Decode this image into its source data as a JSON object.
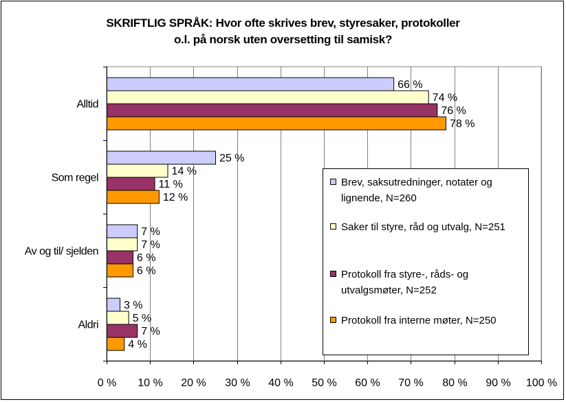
{
  "chart_data": {
    "type": "bar",
    "orientation": "horizontal",
    "title_lines": [
      "SKRIFTLIG SPRÅK: Hvor ofte skrives brev, styresaker, protokoller",
      "o.l. på norsk uten oversetting til samisk?"
    ],
    "categories": [
      "Alltid",
      "Som regel",
      "Av og til/ sjelden",
      "Aldri"
    ],
    "x_ticks": [
      "0 %",
      "10 %",
      "20 %",
      "30 %",
      "40 %",
      "50 %",
      "60 %",
      "70 %",
      "80 %",
      "90 %",
      "100 %"
    ],
    "xlim": [
      0,
      100
    ],
    "grid": true,
    "legend_position": "right-middle",
    "series": [
      {
        "name": "Brev, saksutredninger, notater og lignende, N=260",
        "color": "#CCCCFF",
        "values": [
          66,
          25,
          7,
          3
        ],
        "labels": [
          "66 %",
          "25 %",
          "7 %",
          "3 %"
        ]
      },
      {
        "name": "Saker til styre, råd og utvalg, N=251",
        "color": "#FFFFCC",
        "values": [
          74,
          14,
          7,
          5
        ],
        "labels": [
          "74 %",
          "14 %",
          "7 %",
          "5 %"
        ]
      },
      {
        "name": "Protokoll fra styre-, råds- og utvalgsmøter, N=252",
        "color": "#993366",
        "values": [
          76,
          11,
          6,
          7
        ],
        "labels": [
          "76 %",
          "11 %",
          "6 %",
          "7 %"
        ]
      },
      {
        "name": "Protokoll fra interne møter, N=250",
        "color": "#FF9900",
        "values": [
          78,
          12,
          6,
          4
        ],
        "labels": [
          "78 %",
          "12 %",
          "6 %",
          "4 %"
        ]
      }
    ]
  }
}
